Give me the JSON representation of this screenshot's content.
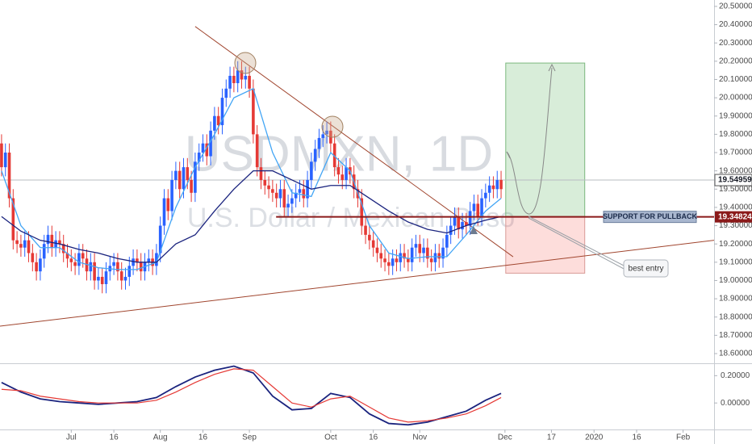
{
  "chart_data": {
    "type": "candlestick",
    "title": "USDMXN, 1D",
    "subtitle": "U.S. Dollar / Mexican Peso",
    "up_color": "#2962ff",
    "down_color": "#e53935",
    "xlim": [
      -0.4,
      184
    ],
    "ylim": [
      18.547,
      20.535
    ],
    "open": [
      19.75,
      19.62,
      19.7,
      19.45,
      19.22,
      19.2,
      19.18,
      19.22,
      19.15,
      19.1,
      19.05,
      19.12,
      19.2,
      19.25,
      19.18,
      19.22,
      19.2,
      19.15,
      19.12,
      19.1,
      19.08,
      19.15,
      19.12,
      19.05,
      19.1,
      19.0,
      19.02,
      18.98,
      19.05,
      19.08,
      19.1,
      19.05,
      19.0,
      19.02,
      19.08,
      19.12,
      19.1,
      19.05,
      19.1,
      19.12,
      19.08,
      19.15,
      19.3,
      19.45,
      19.38,
      19.55,
      19.6,
      19.5,
      19.62,
      19.55,
      19.48,
      19.65,
      19.7,
      19.75,
      19.68,
      19.82,
      19.9,
      19.85,
      20.0,
      20.05,
      20.12,
      20.08,
      20.15,
      20.1,
      20.12,
      20.05,
      19.8,
      19.62,
      19.55,
      19.52,
      19.5,
      19.48,
      19.45,
      19.5,
      19.4,
      19.42,
      19.45,
      19.48,
      19.5,
      19.45,
      19.55,
      19.65,
      19.72,
      19.78,
      19.8,
      19.82,
      19.75,
      19.62,
      19.58,
      19.55,
      19.62,
      19.58,
      19.5,
      19.45,
      19.3,
      19.25,
      19.22,
      19.18,
      19.15,
      19.12,
      19.1,
      19.08,
      19.12,
      19.1,
      19.15,
      19.12,
      19.1,
      19.18,
      19.2,
      19.15,
      19.18,
      19.12,
      19.1,
      19.15,
      19.12,
      19.18,
      19.25,
      19.3,
      19.35,
      19.28,
      19.32,
      19.3,
      19.38,
      19.42,
      19.35,
      19.45,
      19.48,
      19.52,
      19.5,
      19.55
    ],
    "high": [
      19.8,
      19.75,
      19.75,
      19.5,
      19.27,
      19.25,
      19.27,
      19.27,
      19.2,
      19.15,
      19.17,
      19.25,
      19.3,
      19.3,
      19.27,
      19.27,
      19.25,
      19.2,
      19.17,
      19.15,
      19.2,
      19.2,
      19.17,
      19.15,
      19.15,
      19.07,
      19.07,
      19.1,
      19.13,
      19.15,
      19.15,
      19.1,
      19.07,
      19.13,
      19.17,
      19.17,
      19.15,
      19.15,
      19.17,
      19.17,
      19.2,
      19.35,
      19.5,
      19.5,
      19.6,
      19.65,
      19.65,
      19.67,
      19.67,
      19.6,
      19.7,
      19.75,
      19.8,
      19.8,
      19.87,
      19.95,
      19.95,
      20.05,
      20.1,
      20.17,
      20.17,
      20.2,
      20.2,
      20.17,
      20.17,
      20.1,
      19.85,
      19.67,
      19.6,
      19.57,
      19.55,
      19.53,
      19.55,
      19.55,
      19.47,
      19.5,
      19.53,
      19.55,
      19.55,
      19.6,
      19.7,
      19.77,
      19.83,
      19.85,
      19.87,
      19.87,
      19.8,
      19.67,
      19.63,
      19.67,
      19.67,
      19.63,
      19.55,
      19.5,
      19.35,
      19.3,
      19.27,
      19.23,
      19.2,
      19.17,
      19.15,
      19.17,
      19.17,
      19.2,
      19.2,
      19.17,
      19.23,
      19.25,
      19.25,
      19.23,
      19.23,
      19.17,
      19.2,
      19.2,
      19.23,
      19.3,
      19.35,
      19.4,
      19.4,
      19.37,
      19.37,
      19.43,
      19.47,
      19.47,
      19.5,
      19.53,
      19.57,
      19.57,
      19.6,
      19.6
    ],
    "low": [
      19.57,
      19.57,
      19.4,
      19.17,
      19.15,
      19.13,
      19.13,
      19.1,
      19.05,
      19.0,
      19.0,
      19.07,
      19.15,
      19.13,
      19.13,
      19.15,
      19.1,
      19.07,
      19.05,
      19.03,
      19.03,
      19.07,
      19.0,
      19.0,
      18.95,
      18.95,
      18.93,
      18.93,
      19.0,
      19.03,
      19.0,
      18.95,
      18.95,
      18.97,
      19.03,
      19.05,
      19.0,
      19.0,
      19.05,
      19.03,
      19.03,
      19.1,
      19.25,
      19.33,
      19.33,
      19.5,
      19.45,
      19.45,
      19.5,
      19.43,
      19.43,
      19.6,
      19.65,
      19.63,
      19.63,
      19.77,
      19.8,
      19.8,
      19.95,
      20.0,
      20.03,
      20.03,
      20.05,
      20.05,
      20.0,
      19.75,
      19.57,
      19.5,
      19.47,
      19.45,
      19.43,
      19.4,
      19.4,
      19.35,
      19.35,
      19.37,
      19.4,
      19.43,
      19.4,
      19.4,
      19.5,
      19.6,
      19.67,
      19.73,
      19.75,
      19.7,
      19.57,
      19.53,
      19.5,
      19.5,
      19.53,
      19.45,
      19.4,
      19.25,
      19.2,
      19.17,
      19.13,
      19.1,
      19.07,
      19.05,
      19.03,
      19.03,
      19.05,
      19.05,
      19.07,
      19.05,
      19.05,
      19.13,
      19.1,
      19.1,
      19.07,
      19.05,
      19.05,
      19.07,
      19.07,
      19.13,
      19.2,
      19.25,
      19.23,
      19.23,
      19.25,
      19.25,
      19.33,
      19.3,
      19.3,
      19.4,
      19.43,
      19.45,
      19.45,
      19.45
    ],
    "close": [
      19.62,
      19.7,
      19.45,
      19.22,
      19.2,
      19.18,
      19.22,
      19.15,
      19.1,
      19.05,
      19.12,
      19.2,
      19.25,
      19.18,
      19.22,
      19.2,
      19.15,
      19.12,
      19.1,
      19.08,
      19.15,
      19.12,
      19.05,
      19.1,
      19.0,
      19.02,
      18.98,
      19.05,
      19.08,
      19.1,
      19.05,
      19.0,
      19.02,
      19.08,
      19.12,
      19.1,
      19.05,
      19.1,
      19.12,
      19.08,
      19.15,
      19.3,
      19.45,
      19.38,
      19.55,
      19.6,
      19.5,
      19.62,
      19.55,
      19.48,
      19.65,
      19.7,
      19.75,
      19.68,
      19.82,
      19.9,
      19.85,
      20.0,
      20.05,
      20.12,
      20.08,
      20.15,
      20.1,
      20.12,
      20.05,
      19.8,
      19.62,
      19.55,
      19.52,
      19.5,
      19.48,
      19.45,
      19.5,
      19.4,
      19.42,
      19.45,
      19.48,
      19.5,
      19.45,
      19.55,
      19.65,
      19.72,
      19.78,
      19.8,
      19.82,
      19.75,
      19.62,
      19.58,
      19.55,
      19.62,
      19.58,
      19.5,
      19.45,
      19.3,
      19.25,
      19.22,
      19.18,
      19.15,
      19.12,
      19.1,
      19.08,
      19.12,
      19.1,
      19.15,
      19.12,
      19.1,
      19.18,
      19.2,
      19.15,
      19.18,
      19.12,
      19.1,
      19.15,
      19.12,
      19.18,
      19.25,
      19.3,
      19.35,
      19.28,
      19.32,
      19.3,
      19.38,
      19.42,
      19.35,
      19.45,
      19.48,
      19.52,
      19.5,
      19.55,
      19.5
    ],
    "indicators": [
      {
        "color": "#42a5f5",
        "x": [
          0,
          5,
          10,
          15,
          20,
          25,
          30,
          35,
          40,
          45,
          50,
          55,
          60,
          65,
          70,
          75,
          80,
          85,
          90,
          95,
          100,
          105,
          110,
          115,
          120,
          125,
          129
        ],
        "values": [
          19.6,
          19.3,
          19.18,
          19.18,
          19.1,
          19.07,
          19.06,
          19.06,
          19.1,
          19.4,
          19.62,
          19.8,
          20.0,
          20.05,
          19.7,
          19.48,
          19.46,
          19.7,
          19.6,
          19.3,
          19.15,
          19.12,
          19.13,
          19.13,
          19.25,
          19.38,
          19.45
        ]
      },
      {
        "color": "#1a237e",
        "x": [
          0,
          5,
          10,
          15,
          20,
          25,
          30,
          35,
          40,
          45,
          50,
          55,
          60,
          65,
          70,
          75,
          80,
          85,
          90,
          95,
          100,
          105,
          110,
          115,
          120,
          125,
          129
        ],
        "values": [
          19.35,
          19.27,
          19.22,
          19.2,
          19.17,
          19.15,
          19.12,
          19.1,
          19.1,
          19.2,
          19.25,
          19.38,
          19.5,
          19.6,
          19.6,
          19.55,
          19.5,
          19.52,
          19.52,
          19.45,
          19.38,
          19.32,
          19.28,
          19.26,
          19.3,
          19.33,
          19.35
        ]
      }
    ],
    "xticks": [
      {
        "value": 18,
        "label": "Jul"
      },
      {
        "value": 29,
        "label": "16"
      },
      {
        "value": 41,
        "label": "Aug"
      },
      {
        "value": 52,
        "label": "16"
      },
      {
        "value": 64,
        "label": "Sep"
      },
      {
        "value": 85,
        "label": "Oct"
      },
      {
        "value": 96,
        "label": "16"
      },
      {
        "value": 108,
        "label": "Nov"
      },
      {
        "value": 130,
        "label": "Dec"
      },
      {
        "value": 142,
        "label": "17"
      },
      {
        "value": 153,
        "label": "2020"
      },
      {
        "value": 164,
        "label": "16"
      },
      {
        "value": 176,
        "label": "Feb"
      }
    ],
    "yticks": [
      {
        "value": 20.5,
        "label": "20.50000"
      },
      {
        "value": 20.4,
        "label": "20.40000"
      },
      {
        "value": 20.3,
        "label": "20.30000"
      },
      {
        "value": 20.2,
        "label": "20.20000"
      },
      {
        "value": 20.1,
        "label": "20.10000"
      },
      {
        "value": 20.0,
        "label": "20.00000"
      },
      {
        "value": 19.9,
        "label": "19.90000"
      },
      {
        "value": 19.8,
        "label": "19.80000"
      },
      {
        "value": 19.7,
        "label": "19.70000"
      },
      {
        "value": 19.6,
        "label": "19.60000"
      },
      {
        "value": 19.5,
        "label": "19.50000"
      },
      {
        "value": 19.4,
        "label": "19.40000"
      },
      {
        "value": 19.3,
        "label": "19.30000"
      },
      {
        "value": 19.2,
        "label": "19.20000"
      },
      {
        "value": 19.1,
        "label": "19.10000"
      },
      {
        "value": 19.0,
        "label": "19.00000"
      },
      {
        "value": 18.9,
        "label": "18.90000"
      },
      {
        "value": 18.8,
        "label": "18.80000"
      },
      {
        "value": 18.7,
        "label": "18.70000"
      },
      {
        "value": 18.6,
        "label": "18.60000"
      }
    ],
    "last_price": {
      "value": 19.54959,
      "label": "19.54959"
    },
    "support": {
      "value": 19.34824,
      "label": "19.34824",
      "text": "SUPPORT FOR PULLBACK",
      "x_start": 70.9,
      "color": "#8b1a1a"
    },
    "trendlines": [
      {
        "color": "#a0452e",
        "x": [
          50,
          132.1
        ],
        "y": [
          20.39,
          19.13
        ]
      },
      {
        "color": "#a0452e",
        "x": [
          -0.4,
          184
        ],
        "y": [
          18.75,
          19.22
        ]
      }
    ],
    "position": {
      "x": [
        130.2,
        150.6
      ],
      "target": 20.19,
      "entry": 19.35,
      "stop": 19.04
    },
    "annotation": "best entry",
    "oscillator": {
      "ylim": [
        -0.194,
        0.279
      ],
      "yticks": [
        {
          "value": 0.2,
          "label": "0.20000"
        },
        {
          "value": 0,
          "label": "0.00000"
        }
      ],
      "series": [
        {
          "color": "#1a237e",
          "x": [
            0,
            5,
            10,
            15,
            20,
            25,
            30,
            35,
            40,
            45,
            50,
            55,
            60,
            65,
            70,
            75,
            80,
            85,
            90,
            95,
            100,
            105,
            110,
            115,
            120,
            125,
            129
          ],
          "values": [
            0.15,
            0.08,
            0.03,
            0.01,
            0.0,
            -0.01,
            0.0,
            0.01,
            0.04,
            0.12,
            0.19,
            0.24,
            0.27,
            0.22,
            0.05,
            -0.05,
            -0.04,
            0.07,
            0.04,
            -0.08,
            -0.15,
            -0.16,
            -0.14,
            -0.1,
            -0.06,
            0.02,
            0.07
          ]
        },
        {
          "color": "#e53935",
          "x": [
            0,
            5,
            10,
            15,
            20,
            25,
            30,
            35,
            40,
            45,
            50,
            55,
            60,
            65,
            70,
            75,
            80,
            85,
            90,
            95,
            100,
            105,
            110,
            115,
            120,
            125,
            129
          ],
          "values": [
            0.1,
            0.09,
            0.05,
            0.03,
            0.01,
            0.0,
            0.0,
            0.0,
            0.02,
            0.08,
            0.15,
            0.21,
            0.25,
            0.24,
            0.12,
            0.0,
            -0.03,
            0.03,
            0.05,
            -0.03,
            -0.11,
            -0.14,
            -0.13,
            -0.11,
            -0.08,
            -0.02,
            0.04
          ]
        }
      ]
    }
  }
}
